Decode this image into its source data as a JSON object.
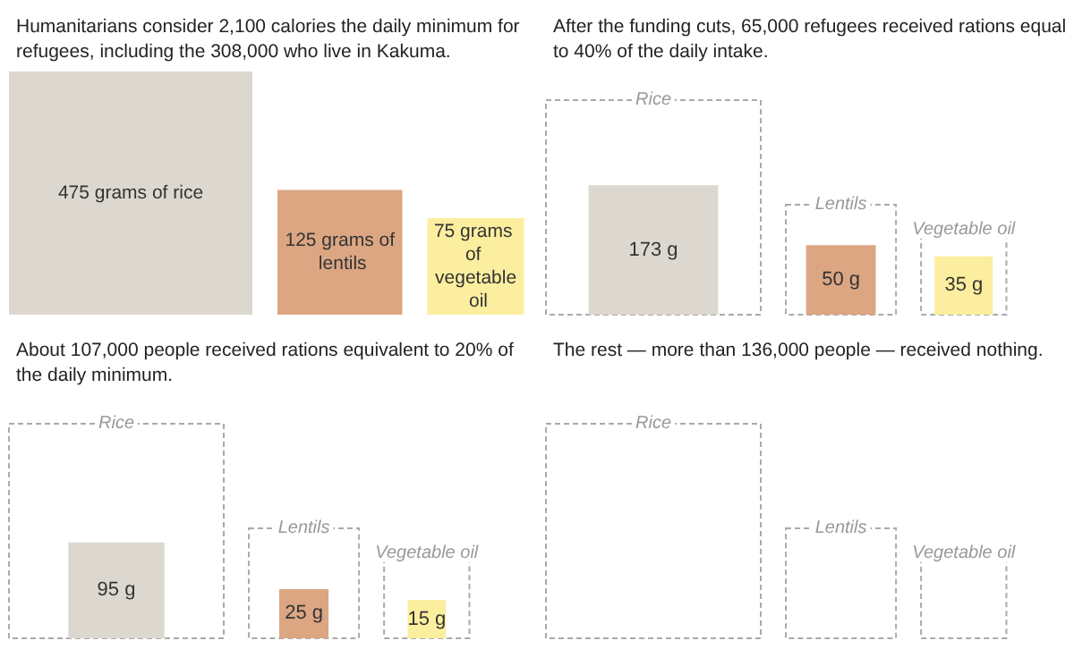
{
  "chart_data": [
    {
      "type": "other",
      "title": "Humanitarians consider 2,100 calories the daily minimum for refugees, including the 308,000 who live in Kakuma.",
      "categories": [
        null,
        null,
        null
      ],
      "series": [
        {
          "values": [
            475,
            125,
            75
          ],
          "colors": [
            "#dcd8d0",
            "#dca683",
            "#fcee9f"
          ],
          "value_labels": [
            "475 grams of rice",
            "125 grams of lentils",
            "75 grams of vegetable oil"
          ]
        }
      ]
    },
    {
      "type": "other",
      "title": "After the funding cuts, 65,000 refugees received rations equal to 40% of the daily intake.",
      "categories": [
        "Rice",
        "Lentils",
        "Vegetable oil"
      ],
      "series": [
        {
          "values": [
            173,
            50,
            35
          ],
          "colors": [
            "#dcd8d0",
            "#dca683",
            "#fcee9f"
          ],
          "value_labels": [
            "173 g",
            "50 g",
            "35 g"
          ]
        }
      ]
    },
    {
      "type": "other",
      "title": "About 107,000 people received rations equivalent to 20% of the daily minimum.",
      "categories": [
        "Rice",
        "Lentils",
        "Vegetable oil"
      ],
      "series": [
        {
          "values": [
            95,
            25,
            15
          ],
          "colors": [
            "#dcd8d0",
            "#dca683",
            "#fcee9f"
          ],
          "value_labels": [
            "95 g",
            "25 g",
            "15 g"
          ]
        }
      ]
    },
    {
      "type": "other",
      "title": "The rest — more than 136,000 people — received nothing.",
      "categories": [
        "Rice",
        "Lentils",
        "Vegetable oil"
      ]
    }
  ]
}
